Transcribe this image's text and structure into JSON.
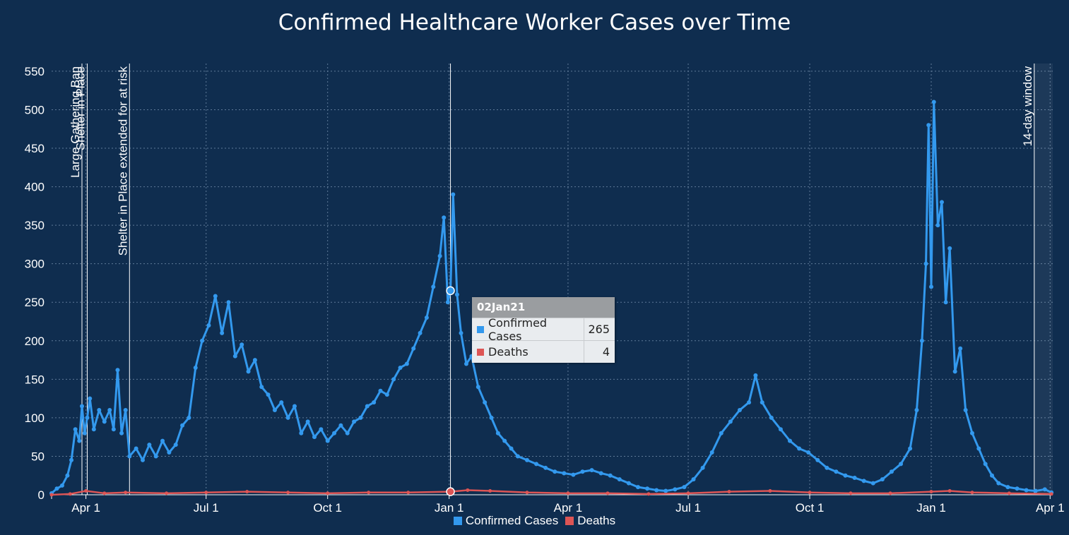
{
  "chart_data": {
    "type": "line",
    "title": "Confirmed Healthcare Worker Cases over Time",
    "xlabel": "",
    "ylabel": "",
    "ylim": [
      0,
      560
    ],
    "yticks": [
      "0",
      "50",
      "100",
      "150",
      "200",
      "250",
      "300",
      "350",
      "400",
      "450",
      "500",
      "550"
    ],
    "xlim": [
      "2020-03-06",
      "2022-04-03"
    ],
    "xticks": [
      {
        "label": "Apr 1",
        "date": "2020-04-01"
      },
      {
        "label": "Jul 1",
        "date": "2020-07-01"
      },
      {
        "label": "Oct 1",
        "date": "2020-10-01"
      },
      {
        "label": "Jan 1",
        "date": "2021-01-01"
      },
      {
        "label": "Apr 1",
        "date": "2021-04-01"
      },
      {
        "label": "Jul 1",
        "date": "2021-07-01"
      },
      {
        "label": "Oct 1",
        "date": "2021-10-01"
      },
      {
        "label": "Jan 1",
        "date": "2022-01-01"
      },
      {
        "label": "Apr 1",
        "date": "2022-04-01"
      }
    ],
    "grid": true,
    "legend_position": "bottom",
    "series": [
      {
        "name": "Confirmed Cases",
        "color": "#3399ee",
        "points": [
          [
            "2020-03-06",
            2
          ],
          [
            "2020-03-10",
            8
          ],
          [
            "2020-03-14",
            12
          ],
          [
            "2020-03-18",
            25
          ],
          [
            "2020-03-21",
            45
          ],
          [
            "2020-03-24",
            85
          ],
          [
            "2020-03-27",
            70
          ],
          [
            "2020-03-29",
            115
          ],
          [
            "2020-03-31",
            80
          ],
          [
            "2020-04-02",
            100
          ],
          [
            "2020-04-04",
            125
          ],
          [
            "2020-04-07",
            85
          ],
          [
            "2020-04-11",
            110
          ],
          [
            "2020-04-15",
            95
          ],
          [
            "2020-04-19",
            110
          ],
          [
            "2020-04-22",
            85
          ],
          [
            "2020-04-25",
            162
          ],
          [
            "2020-04-28",
            80
          ],
          [
            "2020-05-01",
            110
          ],
          [
            "2020-05-04",
            50
          ],
          [
            "2020-05-09",
            60
          ],
          [
            "2020-05-14",
            45
          ],
          [
            "2020-05-19",
            65
          ],
          [
            "2020-05-24",
            50
          ],
          [
            "2020-05-29",
            70
          ],
          [
            "2020-06-03",
            55
          ],
          [
            "2020-06-08",
            65
          ],
          [
            "2020-06-13",
            90
          ],
          [
            "2020-06-18",
            100
          ],
          [
            "2020-06-23",
            165
          ],
          [
            "2020-06-28",
            200
          ],
          [
            "2020-07-03",
            220
          ],
          [
            "2020-07-08",
            258
          ],
          [
            "2020-07-13",
            210
          ],
          [
            "2020-07-18",
            250
          ],
          [
            "2020-07-23",
            180
          ],
          [
            "2020-07-28",
            195
          ],
          [
            "2020-08-02",
            160
          ],
          [
            "2020-08-07",
            175
          ],
          [
            "2020-08-12",
            140
          ],
          [
            "2020-08-17",
            130
          ],
          [
            "2020-08-22",
            110
          ],
          [
            "2020-08-27",
            120
          ],
          [
            "2020-09-01",
            100
          ],
          [
            "2020-09-06",
            115
          ],
          [
            "2020-09-11",
            80
          ],
          [
            "2020-09-16",
            95
          ],
          [
            "2020-09-21",
            75
          ],
          [
            "2020-09-26",
            85
          ],
          [
            "2020-10-01",
            70
          ],
          [
            "2020-10-06",
            80
          ],
          [
            "2020-10-11",
            90
          ],
          [
            "2020-10-16",
            80
          ],
          [
            "2020-10-21",
            95
          ],
          [
            "2020-10-26",
            100
          ],
          [
            "2020-10-31",
            115
          ],
          [
            "2020-11-05",
            120
          ],
          [
            "2020-11-10",
            135
          ],
          [
            "2020-11-15",
            130
          ],
          [
            "2020-11-20",
            150
          ],
          [
            "2020-11-25",
            165
          ],
          [
            "2020-11-30",
            170
          ],
          [
            "2020-12-05",
            190
          ],
          [
            "2020-12-10",
            210
          ],
          [
            "2020-12-15",
            230
          ],
          [
            "2020-12-20",
            270
          ],
          [
            "2020-12-25",
            310
          ],
          [
            "2020-12-28",
            360
          ],
          [
            "2020-12-31",
            250
          ],
          [
            "2021-01-02",
            265
          ],
          [
            "2021-01-04",
            390
          ],
          [
            "2021-01-07",
            260
          ],
          [
            "2021-01-10",
            210
          ],
          [
            "2021-01-14",
            170
          ],
          [
            "2021-01-18",
            180
          ],
          [
            "2021-01-23",
            140
          ],
          [
            "2021-01-28",
            120
          ],
          [
            "2021-02-02",
            100
          ],
          [
            "2021-02-07",
            80
          ],
          [
            "2021-02-12",
            70
          ],
          [
            "2021-02-17",
            60
          ],
          [
            "2021-02-22",
            50
          ],
          [
            "2021-03-01",
            45
          ],
          [
            "2021-03-08",
            40
          ],
          [
            "2021-03-15",
            35
          ],
          [
            "2021-03-22",
            30
          ],
          [
            "2021-03-29",
            28
          ],
          [
            "2021-04-05",
            26
          ],
          [
            "2021-04-12",
            30
          ],
          [
            "2021-04-19",
            32
          ],
          [
            "2021-04-26",
            28
          ],
          [
            "2021-05-03",
            25
          ],
          [
            "2021-05-10",
            20
          ],
          [
            "2021-05-17",
            15
          ],
          [
            "2021-05-24",
            10
          ],
          [
            "2021-05-31",
            8
          ],
          [
            "2021-06-07",
            6
          ],
          [
            "2021-06-14",
            5
          ],
          [
            "2021-06-21",
            7
          ],
          [
            "2021-06-28",
            10
          ],
          [
            "2021-07-05",
            20
          ],
          [
            "2021-07-12",
            35
          ],
          [
            "2021-07-19",
            55
          ],
          [
            "2021-07-26",
            80
          ],
          [
            "2021-08-02",
            95
          ],
          [
            "2021-08-09",
            110
          ],
          [
            "2021-08-16",
            120
          ],
          [
            "2021-08-21",
            155
          ],
          [
            "2021-08-26",
            120
          ],
          [
            "2021-09-02",
            100
          ],
          [
            "2021-09-09",
            85
          ],
          [
            "2021-09-16",
            70
          ],
          [
            "2021-09-23",
            60
          ],
          [
            "2021-09-30",
            55
          ],
          [
            "2021-10-07",
            45
          ],
          [
            "2021-10-14",
            35
          ],
          [
            "2021-10-21",
            30
          ],
          [
            "2021-10-28",
            25
          ],
          [
            "2021-11-04",
            22
          ],
          [
            "2021-11-11",
            18
          ],
          [
            "2021-11-18",
            15
          ],
          [
            "2021-11-25",
            20
          ],
          [
            "2021-12-02",
            30
          ],
          [
            "2021-12-09",
            40
          ],
          [
            "2021-12-16",
            60
          ],
          [
            "2021-12-21",
            110
          ],
          [
            "2021-12-25",
            200
          ],
          [
            "2021-12-28",
            300
          ],
          [
            "2021-12-30",
            480
          ],
          [
            "2022-01-01",
            270
          ],
          [
            "2022-01-03",
            510
          ],
          [
            "2022-01-06",
            350
          ],
          [
            "2022-01-09",
            380
          ],
          [
            "2022-01-12",
            250
          ],
          [
            "2022-01-15",
            320
          ],
          [
            "2022-01-19",
            160
          ],
          [
            "2022-01-23",
            190
          ],
          [
            "2022-01-27",
            110
          ],
          [
            "2022-02-01",
            80
          ],
          [
            "2022-02-06",
            60
          ],
          [
            "2022-02-11",
            40
          ],
          [
            "2022-02-16",
            25
          ],
          [
            "2022-02-21",
            15
          ],
          [
            "2022-02-28",
            10
          ],
          [
            "2022-03-07",
            8
          ],
          [
            "2022-03-14",
            6
          ],
          [
            "2022-03-21",
            5
          ],
          [
            "2022-03-28",
            7
          ],
          [
            "2022-04-02",
            3
          ]
        ]
      },
      {
        "name": "Deaths",
        "color": "#dd5555",
        "points": [
          [
            "2020-03-06",
            0
          ],
          [
            "2020-03-20",
            1
          ],
          [
            "2020-04-01",
            5
          ],
          [
            "2020-04-15",
            2
          ],
          [
            "2020-05-01",
            3
          ],
          [
            "2020-06-01",
            2
          ],
          [
            "2020-07-01",
            3
          ],
          [
            "2020-08-01",
            4
          ],
          [
            "2020-09-01",
            3
          ],
          [
            "2020-10-01",
            2
          ],
          [
            "2020-11-01",
            3
          ],
          [
            "2020-12-01",
            3
          ],
          [
            "2021-01-02",
            4
          ],
          [
            "2021-01-15",
            6
          ],
          [
            "2021-02-01",
            5
          ],
          [
            "2021-03-01",
            3
          ],
          [
            "2021-04-01",
            2
          ],
          [
            "2021-05-01",
            2
          ],
          [
            "2021-06-01",
            1
          ],
          [
            "2021-07-01",
            2
          ],
          [
            "2021-08-01",
            4
          ],
          [
            "2021-09-01",
            5
          ],
          [
            "2021-10-01",
            3
          ],
          [
            "2021-11-01",
            2
          ],
          [
            "2021-12-01",
            2
          ],
          [
            "2022-01-01",
            4
          ],
          [
            "2022-01-15",
            5
          ],
          [
            "2022-02-01",
            3
          ],
          [
            "2022-03-01",
            2
          ],
          [
            "2022-04-02",
            1
          ]
        ]
      }
    ],
    "reference_lines": [
      {
        "label": "Large Gathering Ban",
        "date": "2020-03-29"
      },
      {
        "label": "Shelter in Place",
        "date": "2020-04-02"
      },
      {
        "label": "Shelter in Place extended for at risk",
        "date": "2020-05-04"
      },
      {
        "label": "",
        "date": "2021-01-02"
      },
      {
        "label": "14-day window",
        "date": "2022-03-20"
      }
    ],
    "tooltip": {
      "date": "02Jan21",
      "rows": [
        {
          "label": "Confirmed Cases",
          "value": "265",
          "color": "#3399ee"
        },
        {
          "label": "Deaths",
          "value": "4",
          "color": "#dd5555"
        }
      ]
    }
  }
}
